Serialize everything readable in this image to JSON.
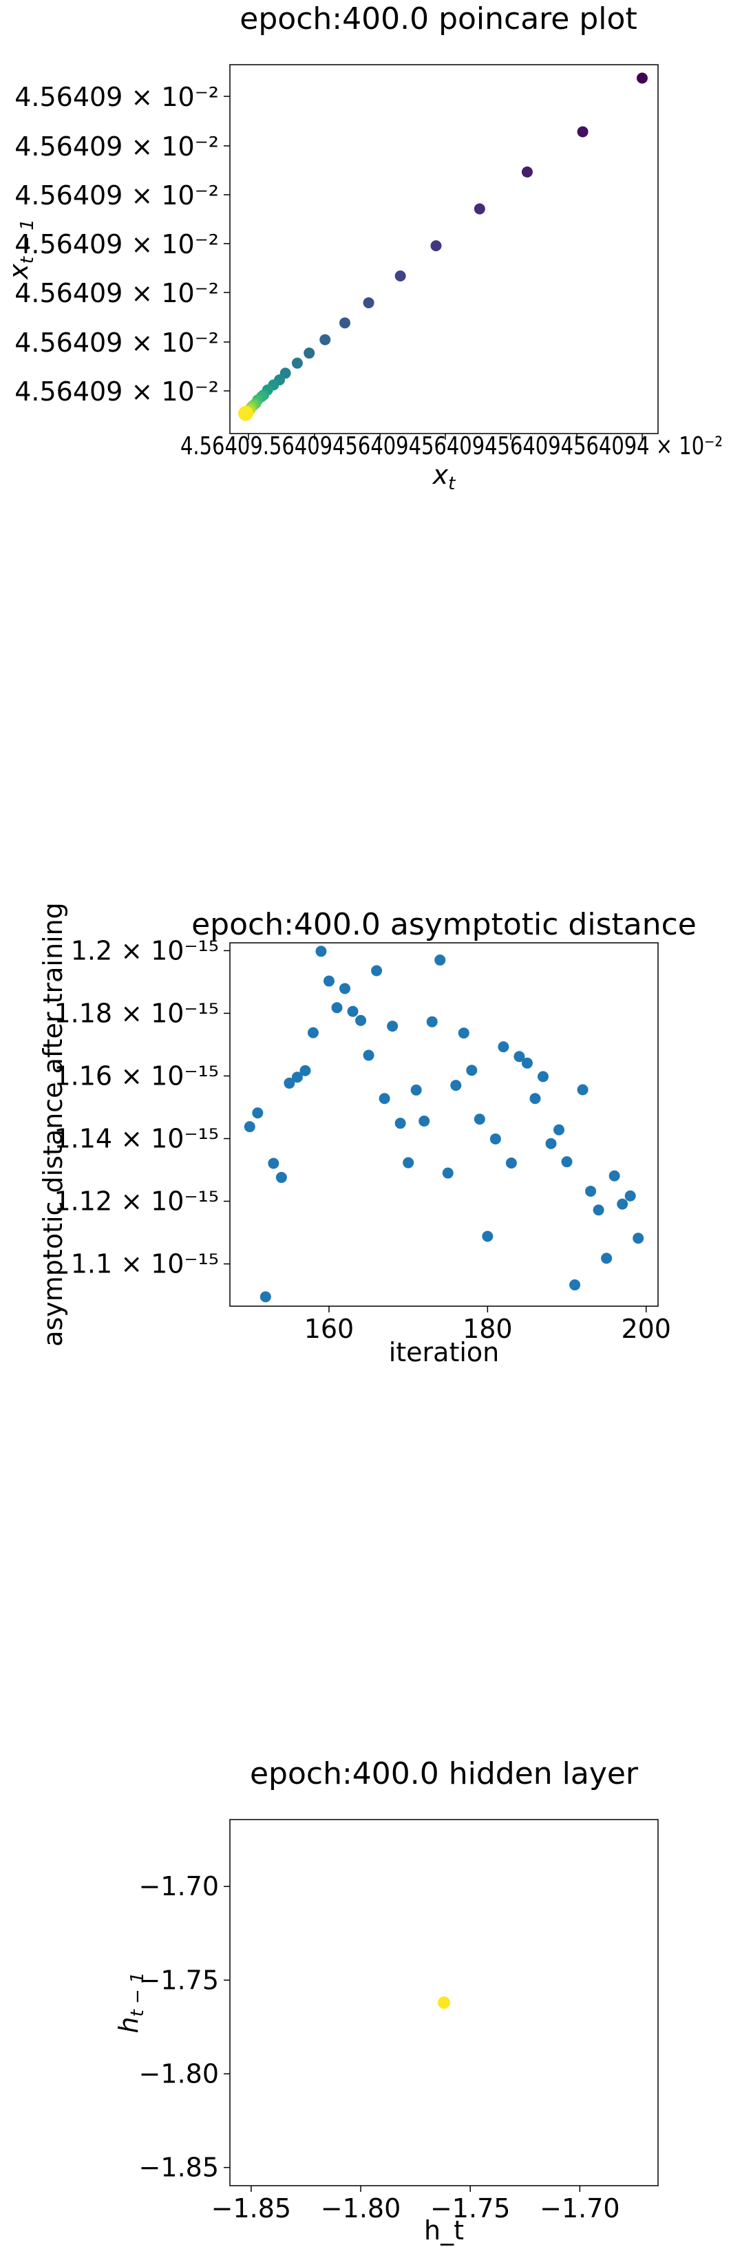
{
  "chart_data": [
    {
      "type": "scatter",
      "title": "epoch:400.0 poincare plot",
      "xlabel": "x_t",
      "ylabel": "x_{t-1}",
      "colormap": "viridis",
      "y_tick_labels": [
        "4.56409 × 10⁻²",
        "4.56409 × 10⁻²",
        "4.56409 × 10⁻²",
        "4.56409 × 10⁻²",
        "4.56409 × 10⁻²",
        "4.56409 × 10⁻²",
        "4.56409 × 10⁻²"
      ],
      "x_tick_labels": [
        "4.56409 × 10⁻²",
        "4.56409 × 10⁻²",
        "4.56409 × 10⁻²",
        "4.56409 × 10⁻²",
        "4.56409 × 10⁻²",
        "4.56409 × 10⁻²",
        "4.56409 × 10⁻²"
      ],
      "x_tick_text_overlapped": "4.56409.564094564094564094564094564094 × 10⁻²",
      "points": [
        {
          "x": 1.0,
          "y": 1.0,
          "c": 0.0
        },
        {
          "x": 0.85,
          "y": 0.84,
          "c": 0.04
        },
        {
          "x": 0.71,
          "y": 0.72,
          "c": 0.08
        },
        {
          "x": 0.59,
          "y": 0.61,
          "c": 0.12
        },
        {
          "x": 0.48,
          "y": 0.5,
          "c": 0.16
        },
        {
          "x": 0.39,
          "y": 0.41,
          "c": 0.2
        },
        {
          "x": 0.31,
          "y": 0.33,
          "c": 0.24
        },
        {
          "x": 0.25,
          "y": 0.27,
          "c": 0.28
        },
        {
          "x": 0.2,
          "y": 0.22,
          "c": 0.32
        },
        {
          "x": 0.16,
          "y": 0.18,
          "c": 0.36
        },
        {
          "x": 0.13,
          "y": 0.15,
          "c": 0.4
        },
        {
          "x": 0.1,
          "y": 0.12,
          "c": 0.44
        },
        {
          "x": 0.085,
          "y": 0.1,
          "c": 0.48
        },
        {
          "x": 0.07,
          "y": 0.085,
          "c": 0.52
        },
        {
          "x": 0.055,
          "y": 0.07,
          "c": 0.56
        },
        {
          "x": 0.045,
          "y": 0.055,
          "c": 0.6
        },
        {
          "x": 0.04,
          "y": 0.05,
          "c": 0.64
        },
        {
          "x": 0.03,
          "y": 0.04,
          "c": 0.68
        },
        {
          "x": 0.025,
          "y": 0.03,
          "c": 0.72
        },
        {
          "x": 0.02,
          "y": 0.025,
          "c": 0.76
        },
        {
          "x": 0.015,
          "y": 0.02,
          "c": 0.8
        },
        {
          "x": 0.012,
          "y": 0.015,
          "c": 0.84
        },
        {
          "x": 0.01,
          "y": 0.01,
          "c": 0.88
        },
        {
          "x": 0.005,
          "y": 0.005,
          "c": 0.94
        },
        {
          "x": 0.0,
          "y": 0.0,
          "c": 1.0
        }
      ],
      "xlim": [
        -0.04,
        1.04
      ],
      "ylim": [
        -0.06,
        1.04
      ],
      "point_size": "large"
    },
    {
      "type": "scatter",
      "title": "epoch:400.0 asymptotic distance",
      "xlabel": "iteration",
      "ylabel": "asymptotic distance after training",
      "y_scale_unit": "10⁻¹⁵",
      "color": "#1f77b4",
      "xlim": [
        147.5,
        201.5
      ],
      "ylim": [
        1.0865,
        1.2025
      ],
      "x_ticks": [
        160,
        180,
        200
      ],
      "y_ticks": [
        1.1,
        1.12,
        1.14,
        1.16,
        1.18,
        1.2
      ],
      "y_tick_labels": [
        "1.1 × 10⁻¹⁵",
        "1.12 × 10⁻¹⁵",
        "1.14 × 10⁻¹⁵",
        "1.16 × 10⁻¹⁵",
        "1.18 × 10⁻¹⁵",
        "1.2 × 10⁻¹⁵"
      ],
      "x": [
        150,
        151,
        152,
        153,
        154,
        155,
        156,
        157,
        158,
        159,
        160,
        161,
        162,
        163,
        164,
        165,
        166,
        167,
        168,
        169,
        170,
        171,
        172,
        173,
        174,
        175,
        176,
        177,
        178,
        179,
        180,
        181,
        182,
        183,
        184,
        185,
        186,
        187,
        188,
        189,
        190,
        191,
        192,
        193,
        194,
        195,
        196,
        197,
        198,
        199
      ],
      "y": [
        1.1438,
        1.1482,
        1.0895,
        1.1321,
        1.1276,
        1.1577,
        1.1596,
        1.1617,
        1.1738,
        1.1998,
        1.1903,
        1.1818,
        1.1879,
        1.1806,
        1.1777,
        1.1666,
        1.1936,
        1.1528,
        1.1759,
        1.1449,
        1.1323,
        1.1555,
        1.1456,
        1.1773,
        1.197,
        1.129,
        1.157,
        1.1737,
        1.1618,
        1.1462,
        1.1088,
        1.1399,
        1.1693,
        1.1322,
        1.1662,
        1.1641,
        1.1528,
        1.1598,
        1.1384,
        1.1428,
        1.1326,
        1.0933,
        1.1556,
        1.1232,
        1.1172,
        1.1018,
        1.1281,
        1.1191,
        1.1217,
        1.1082
      ]
    },
    {
      "type": "scatter",
      "title": "epoch:400.0 hidden layer",
      "xlabel": "h_t",
      "ylabel": "h_{t-1}",
      "color": "#fde725",
      "xlim": [
        -1.8597,
        -1.6643
      ],
      "ylim": [
        -1.8597,
        -1.6643
      ],
      "x_ticks": [
        -1.85,
        -1.8,
        -1.75,
        -1.7
      ],
      "y_ticks": [
        -1.85,
        -1.8,
        -1.75,
        -1.7
      ],
      "x_tick_labels": [
        "−1.85",
        "−1.80",
        "−1.75",
        "−1.70"
      ],
      "y_tick_labels": [
        "−1.85",
        "−1.80",
        "−1.75",
        "−1.70"
      ],
      "points": [
        {
          "x": -1.762,
          "y": -1.762
        }
      ]
    }
  ]
}
